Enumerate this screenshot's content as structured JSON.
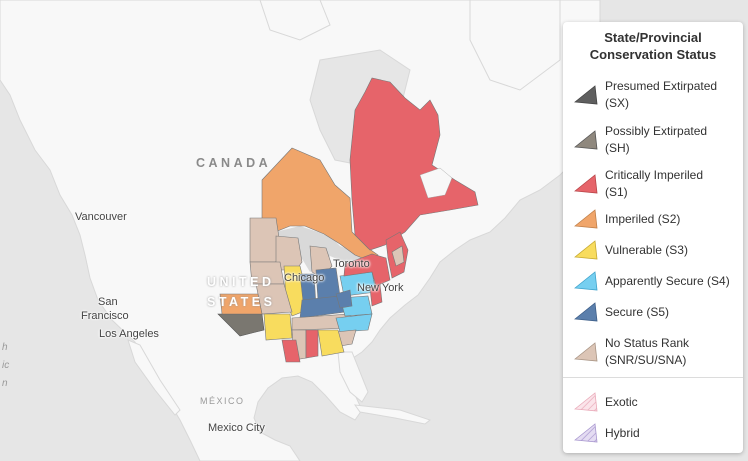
{
  "map": {
    "labels": {
      "canada": "CANADA",
      "united_1": "UNITED",
      "united_2": "STATES",
      "mexico": "MÉXICO",
      "vancouver": "Vancouver",
      "sf_1": "San",
      "sf_2": "Francisco",
      "los_angeles": "Los Angeles",
      "chicago": "Chicago",
      "toronto": "Toronto",
      "new_york": "New York",
      "mexico_city": "Mexico City",
      "edge_1": "h",
      "edge_2": "ic",
      "edge_3": "n"
    }
  },
  "legend": {
    "title_line1": "State/Provincial",
    "title_line2": "Conservation Status",
    "items": [
      {
        "label_1": "Presumed Extirpated",
        "label_2": "(SX)",
        "color": "#5f5f5f",
        "icon": "sx-swatch"
      },
      {
        "label_1": "Possibly Extirpated",
        "label_2": "(SH)",
        "color": "#8f887e",
        "icon": "sh-swatch"
      },
      {
        "label_1": "Critically Imperiled",
        "label_2": "(S1)",
        "color": "#e6646a",
        "icon": "s1-swatch"
      },
      {
        "label_1": "Imperiled (S2)",
        "label_2": "",
        "color": "#f0a56a",
        "icon": "s2-swatch"
      },
      {
        "label_1": "Vulnerable (S3)",
        "label_2": "",
        "color": "#f8dc5e",
        "icon": "s3-swatch"
      },
      {
        "label_1": "Apparently Secure (S4)",
        "label_2": "",
        "color": "#76cff0",
        "icon": "s4-swatch"
      },
      {
        "label_1": "Secure (S5)",
        "label_2": "",
        "color": "#5b7fac",
        "icon": "s5-swatch"
      },
      {
        "label_1": "No Status Rank",
        "label_2": "(SNR/SU/SNA)",
        "color": "#dcc5b6",
        "icon": "snr-swatch"
      },
      {
        "label_1": "Exotic",
        "label_2": "",
        "color": "#f5d0d8",
        "icon": "exotic-swatch"
      },
      {
        "label_1": "Hybrid",
        "label_2": "",
        "color": "#cfc3e6",
        "icon": "hybrid-swatch"
      }
    ]
  }
}
